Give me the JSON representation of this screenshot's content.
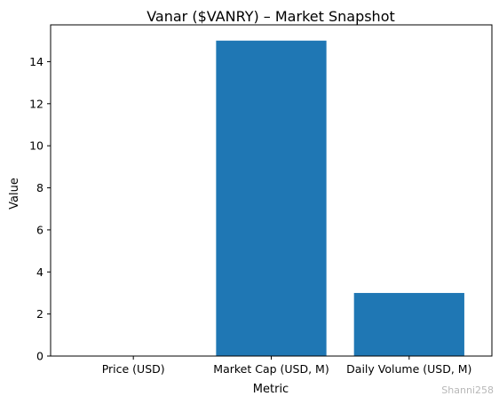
{
  "chart_data": {
    "type": "bar",
    "title": "Vanar ($VANRY) – Market Snapshot",
    "xlabel": "Metric",
    "ylabel": "Value",
    "categories": [
      "Price (USD)",
      "Market Cap (USD, M)",
      "Daily Volume (USD, M)"
    ],
    "values": [
      0.02,
      15,
      3
    ],
    "ylim": [
      0,
      15.75
    ],
    "yticks": [
      0,
      2,
      4,
      6,
      8,
      10,
      12,
      14
    ],
    "bar_color": "#1f77b4",
    "grid": false,
    "legend": null
  },
  "watermark": "Shanni258"
}
